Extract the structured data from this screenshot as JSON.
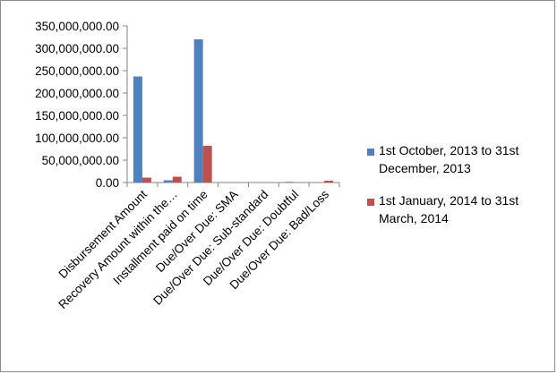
{
  "chart_data": {
    "type": "bar",
    "categories": [
      "Disbursement Amount",
      "Recovery Amount within the…",
      "Installment paid on time",
      "Due/Over Due: SMA",
      "Due/Over Due: Sub-standard",
      "Due/Over Due: Doubtful",
      "Due/Over Due: Bad/Loss"
    ],
    "series": [
      {
        "name": "1st October, 2013 to 31st December, 2013",
        "name_lines": [
          "1st October, 2013 to 31st",
          "December, 2013"
        ],
        "color": "#4f81bd",
        "values": [
          237000000,
          5000000,
          320000000,
          0,
          0,
          1500000,
          0
        ]
      },
      {
        "name": "1st January, 2014 to 31st March, 2014",
        "name_lines": [
          "1st January, 2014 to 31st",
          "March, 2014"
        ],
        "color": "#c0504d",
        "values": [
          11000000,
          13000000,
          82000000,
          0,
          0,
          0,
          4000000
        ]
      }
    ],
    "y_ticks": [
      "0.00",
      "50,000,000.00",
      "100,000,000.00",
      "150,000,000.00",
      "200,000,000.00",
      "250,000,000.00",
      "300,000,000.00",
      "350,000,000.00"
    ],
    "ylim": [
      0,
      350000000
    ],
    "y_step": 50000000,
    "grid": false,
    "legend_position": "right",
    "title": "",
    "xlabel": "",
    "ylabel": ""
  }
}
